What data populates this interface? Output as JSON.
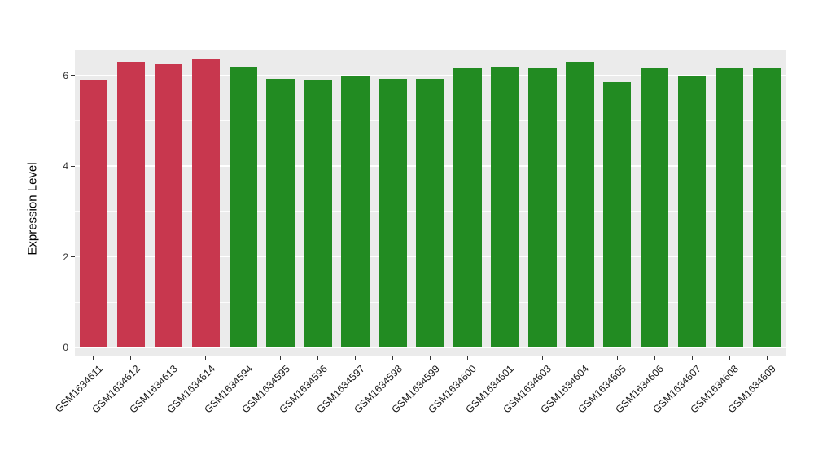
{
  "figure": {
    "background": "#FFFFFF",
    "panel_background": "#EBEBEB",
    "gridline_color": "#FFFFFF",
    "tick_color": "#333333"
  },
  "chart_data": {
    "type": "bar",
    "title": "",
    "xlabel": "",
    "ylabel": "Expression Level",
    "categories": [
      "GSM1634611",
      "GSM1634612",
      "GSM1634613",
      "GSM1634614",
      "GSM1634594",
      "GSM1634595",
      "GSM1634596",
      "GSM1634597",
      "GSM1634598",
      "GSM1634599",
      "GSM1634600",
      "GSM1634601",
      "GSM1634603",
      "GSM1634604",
      "GSM1634605",
      "GSM1634606",
      "GSM1634607",
      "GSM1634608",
      "GSM1634609"
    ],
    "values": [
      5.9,
      6.3,
      6.25,
      6.35,
      6.2,
      5.93,
      5.9,
      5.98,
      5.93,
      5.92,
      6.15,
      6.2,
      6.18,
      6.3,
      5.85,
      6.18,
      5.98,
      6.15,
      6.18
    ],
    "colors": [
      "#C8374E",
      "#C8374E",
      "#C8374E",
      "#C8374E",
      "#228B22",
      "#228B22",
      "#228B22",
      "#228B22",
      "#228B22",
      "#228B22",
      "#228B22",
      "#228B22",
      "#228B22",
      "#228B22",
      "#228B22",
      "#228B22",
      "#228B22",
      "#228B22",
      "#228B22"
    ],
    "bar_color_red": "#C8374E",
    "bar_color_green": "#228B22",
    "yticks": [
      0,
      2,
      4,
      6
    ],
    "yticks_minor": [
      1,
      3,
      5
    ],
    "ylim": [
      0,
      6.55
    ],
    "display_range": [
      -0.18,
      6.55
    ],
    "x_tick_rotation": 45,
    "grid": true,
    "legend": false
  }
}
